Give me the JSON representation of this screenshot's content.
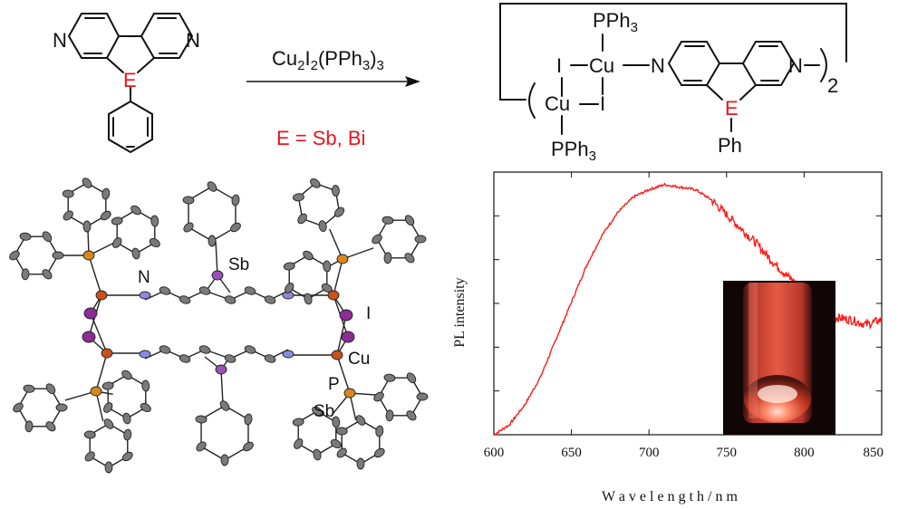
{
  "scheme": {
    "ligand": {
      "n_left": "N",
      "n_right": "N",
      "heteroatom": "E"
    },
    "reagent": {
      "base": "Cu",
      "sub1": "2",
      "i": "I",
      "sub2": "2",
      "ligand": "(PPh",
      "sub3": "3",
      "close": ")",
      "sub4": "3"
    },
    "condition": "E = Sb, Bi",
    "polymer": {
      "pph3_top": "PPh",
      "pph3_top_sub": "3",
      "i_left": "I",
      "cu_top": "Cu",
      "n_left": "N",
      "n_right": "N",
      "cu_bottom": "Cu",
      "i_right": "I",
      "heteroatom": "E",
      "ph": "Ph",
      "pph3_bottom": "PPh",
      "pph3_bottom_sub": "3",
      "repeat": "2"
    }
  },
  "crystal": {
    "labels": {
      "n": "N",
      "sb_top": "Sb",
      "i": "I",
      "cu": "Cu",
      "p": "P",
      "sb_bottom": "Sb"
    },
    "colors": {
      "cu": "#c8521c",
      "i": "#8c2c95",
      "n": "#8a8ae0",
      "p": "#d9861f",
      "sb": "#9b4fb8",
      "c": "#7a7a7a"
    }
  },
  "chart_data": {
    "type": "line",
    "xlabel": "W a v e l e n g t h  /  n m",
    "ylabel": "PL intensity",
    "xlim": [
      600,
      850
    ],
    "ylim": [
      0,
      1.05
    ],
    "xticks": [
      600,
      650,
      700,
      750,
      800,
      850
    ],
    "grid": false,
    "series": [
      {
        "color": "#ff1a1a",
        "x": [
          600,
          610,
          620,
          630,
          640,
          650,
          660,
          670,
          680,
          690,
          700,
          710,
          720,
          730,
          740,
          750,
          760,
          770,
          780,
          790,
          800,
          810,
          820,
          830,
          840,
          850
        ],
        "y": [
          0.0,
          0.04,
          0.12,
          0.23,
          0.38,
          0.53,
          0.68,
          0.8,
          0.89,
          0.95,
          0.98,
          1.0,
          0.99,
          0.98,
          0.94,
          0.88,
          0.82,
          0.76,
          0.69,
          0.63,
          0.58,
          0.52,
          0.47,
          0.46,
          0.44,
          0.46
        ]
      }
    ],
    "inset": "photo of glowing red powder in a vial"
  }
}
